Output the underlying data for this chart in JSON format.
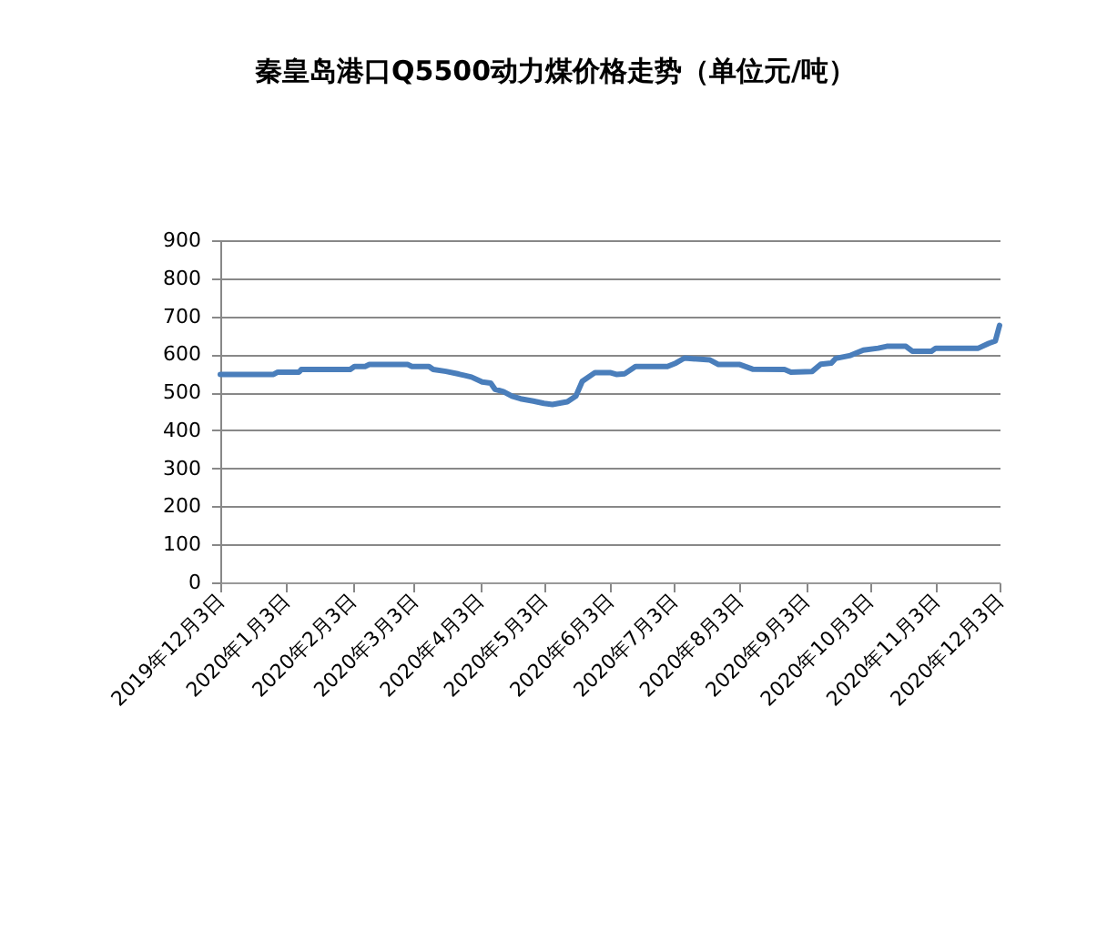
{
  "chart_data": {
    "type": "line",
    "title": "秦皇岛港口Q5500动力煤价格走势（单位元/吨）",
    "x": [
      "2019-12-03",
      "2019-12-28",
      "2019-12-30",
      "2020-01-09",
      "2020-01-10",
      "2020-02-02",
      "2020-02-04",
      "2020-02-09",
      "2020-02-11",
      "2020-02-29",
      "2020-03-02",
      "2020-03-10",
      "2020-03-12",
      "2020-03-18",
      "2020-03-24",
      "2020-03-30",
      "2020-04-04",
      "2020-04-08",
      "2020-04-10",
      "2020-04-14",
      "2020-04-18",
      "2020-04-22",
      "2020-04-28",
      "2020-05-03",
      "2020-05-07",
      "2020-05-11",
      "2020-05-14",
      "2020-05-18",
      "2020-05-21",
      "2020-05-27",
      "2020-06-03",
      "2020-06-06",
      "2020-06-10",
      "2020-06-15",
      "2020-06-30",
      "2020-07-04",
      "2020-07-08",
      "2020-07-20",
      "2020-07-24",
      "2020-08-03",
      "2020-08-09",
      "2020-08-24",
      "2020-08-27",
      "2020-09-06",
      "2020-09-10",
      "2020-09-15",
      "2020-09-17",
      "2020-09-24",
      "2020-09-30",
      "2020-10-07",
      "2020-10-11",
      "2020-10-20",
      "2020-10-23",
      "2020-11-01",
      "2020-11-03",
      "2020-11-23",
      "2020-11-28",
      "2020-12-01",
      "2020-12-03"
    ],
    "series": [
      {
        "color": "#4a7ebb",
        "values": [
          547,
          547,
          553,
          553,
          560,
          560,
          568,
          568,
          573,
          573,
          568,
          568,
          560,
          555,
          548,
          540,
          527,
          524,
          508,
          502,
          490,
          483,
          477,
          471,
          468,
          472,
          475,
          490,
          529,
          552,
          552,
          547,
          549,
          568,
          568,
          577,
          590,
          585,
          573,
          573,
          561,
          560,
          553,
          555,
          574,
          577,
          589,
          597,
          611,
          616,
          621,
          621,
          608,
          608,
          616,
          616,
          629,
          635,
          676
        ]
      }
    ],
    "xlim": [
      "2019-12-03",
      "2020-12-03"
    ],
    "xticks": [
      {
        "value": "2019-12-03",
        "label": "2019年12月3日"
      },
      {
        "value": "2020-01-03",
        "label": "2020年1月3日"
      },
      {
        "value": "2020-02-03",
        "label": "2020年2月3日"
      },
      {
        "value": "2020-03-03",
        "label": "2020年3月3日"
      },
      {
        "value": "2020-04-03",
        "label": "2020年4月3日"
      },
      {
        "value": "2020-05-03",
        "label": "2020年5月3日"
      },
      {
        "value": "2020-06-03",
        "label": "2020年6月3日"
      },
      {
        "value": "2020-07-03",
        "label": "2020年7月3日"
      },
      {
        "value": "2020-08-03",
        "label": "2020年8月3日"
      },
      {
        "value": "2020-09-03",
        "label": "2020年9月3日"
      },
      {
        "value": "2020-10-03",
        "label": "2020年10月3日"
      },
      {
        "value": "2020-11-03",
        "label": "2020年11月3日"
      },
      {
        "value": "2020-12-03",
        "label": "2020年12月3日"
      }
    ],
    "ylim": [
      0,
      900
    ],
    "yticks": [
      0,
      100,
      200,
      300,
      400,
      500,
      600,
      700,
      800,
      900
    ],
    "grid": "y",
    "line_style": "solid"
  }
}
